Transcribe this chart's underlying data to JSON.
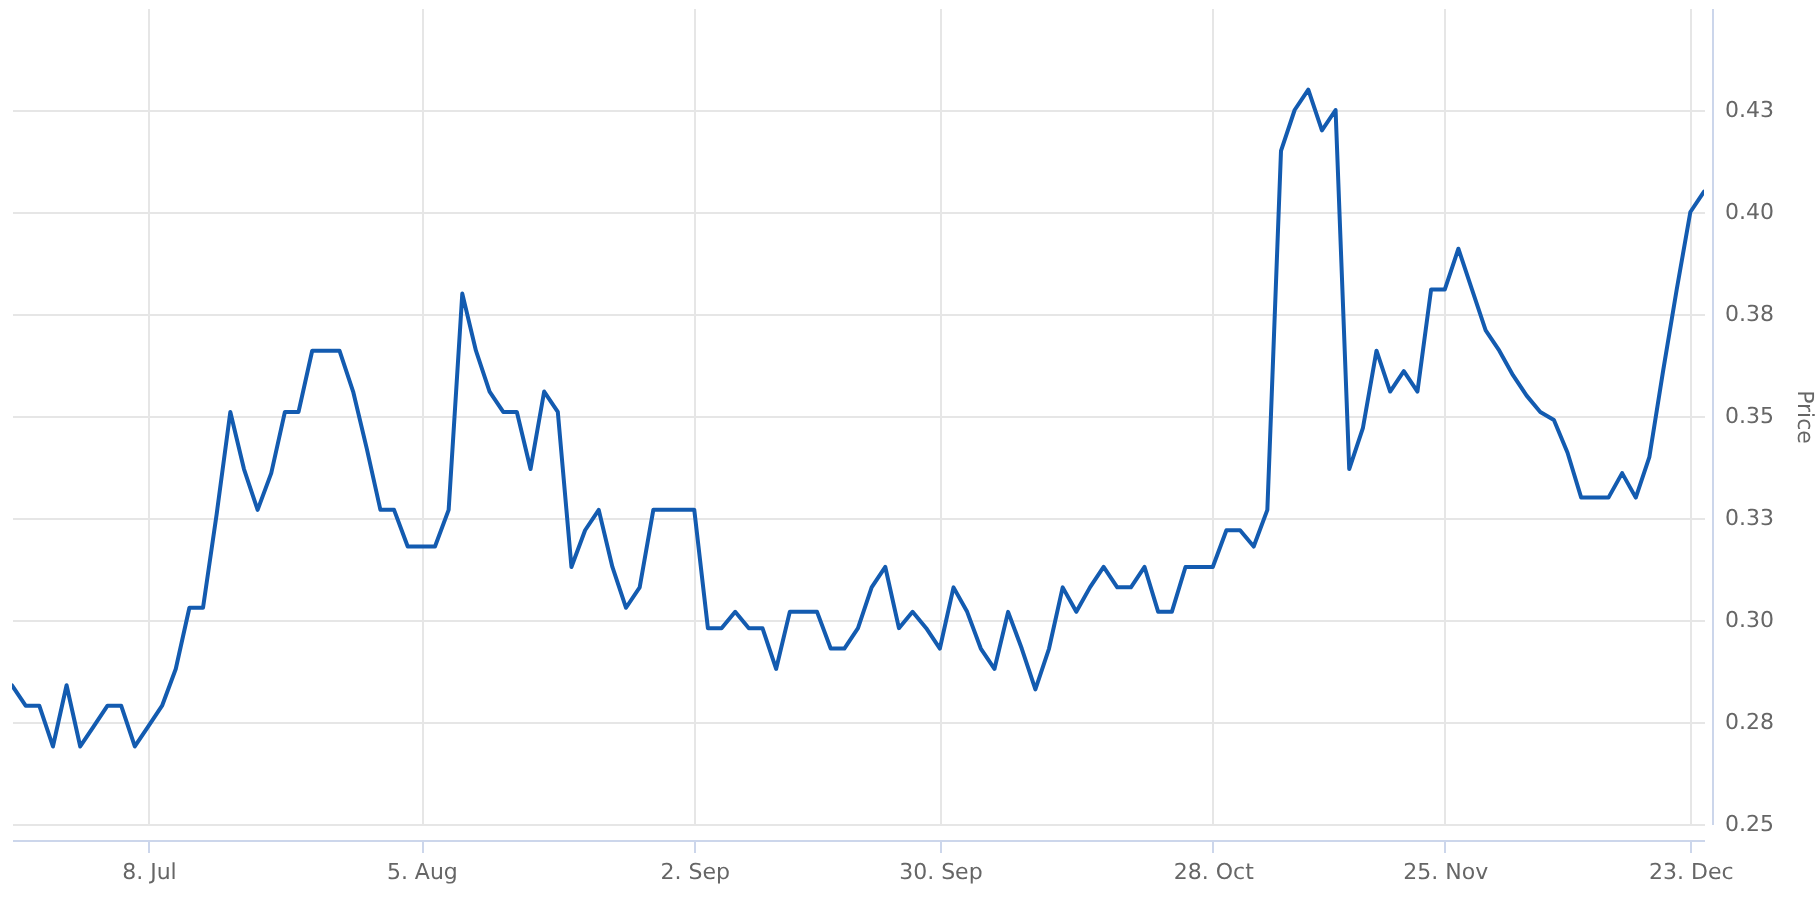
{
  "chart_data": {
    "type": "line",
    "ylabel": "Price",
    "grid": true,
    "categories": [
      null,
      null,
      null,
      null,
      null,
      null,
      null,
      null,
      null,
      null,
      "8. Jul",
      null,
      null,
      null,
      null,
      null,
      null,
      null,
      null,
      null,
      null,
      null,
      null,
      null,
      null,
      null,
      null,
      null,
      null,
      null,
      "5. Aug",
      null,
      null,
      null,
      null,
      null,
      null,
      null,
      null,
      null,
      null,
      null,
      null,
      null,
      null,
      null,
      null,
      null,
      null,
      null,
      "2. Sep",
      null,
      null,
      null,
      null,
      null,
      null,
      null,
      null,
      null,
      null,
      null,
      null,
      null,
      null,
      null,
      null,
      null,
      "30. Sep",
      null,
      null,
      null,
      null,
      null,
      null,
      null,
      null,
      null,
      null,
      null,
      null,
      null,
      null,
      null,
      null,
      null,
      null,
      null,
      "28. Oct",
      null,
      null,
      null,
      null,
      null,
      null,
      null,
      null,
      null,
      null,
      null,
      null,
      null,
      null,
      null,
      null,
      "25. Nov",
      null,
      null,
      null,
      null,
      null,
      null,
      null,
      null,
      null,
      null,
      null,
      null,
      null,
      null,
      null,
      null,
      null,
      "23. Dec",
      null
    ],
    "series": [
      {
        "color": "#135bb0",
        "values": [
          0.284,
          0.279,
          0.279,
          0.269,
          0.284,
          0.269,
          0.274,
          0.279,
          0.279,
          0.269,
          0.274,
          0.279,
          0.288,
          0.303,
          0.303,
          0.326,
          0.351,
          0.337,
          0.327,
          0.336,
          0.351,
          0.351,
          0.366,
          0.366,
          0.366,
          0.356,
          0.342,
          0.327,
          0.327,
          0.318,
          0.318,
          0.318,
          0.327,
          0.38,
          0.366,
          0.356,
          0.351,
          0.351,
          0.337,
          0.356,
          0.351,
          0.313,
          0.322,
          0.327,
          0.313,
          0.303,
          0.308,
          0.327,
          0.327,
          0.327,
          0.327,
          0.298,
          0.298,
          0.302,
          0.298,
          0.298,
          0.288,
          0.302,
          0.302,
          0.302,
          0.293,
          0.293,
          0.298,
          0.308,
          0.313,
          0.298,
          0.302,
          0.298,
          0.293,
          0.308,
          0.302,
          0.293,
          0.288,
          0.302,
          0.293,
          0.283,
          0.293,
          0.308,
          0.302,
          0.308,
          0.313,
          0.308,
          0.308,
          0.313,
          0.302,
          0.302,
          0.313,
          0.313,
          0.313,
          0.322,
          0.322,
          0.318,
          0.327,
          0.415,
          0.425,
          0.43,
          0.42,
          0.425,
          0.337,
          0.347,
          0.366,
          0.356,
          0.361,
          0.356,
          0.381,
          0.381,
          0.391,
          0.381,
          0.371,
          0.366,
          0.36,
          0.355,
          0.351,
          0.349,
          0.341,
          0.33,
          0.33,
          0.33,
          0.336,
          0.33,
          0.34,
          0.361,
          0.381,
          0.4,
          0.405
        ]
      }
    ],
    "ylim": [
      0.25,
      0.45
    ],
    "yticks": [
      0.25,
      {
        "value": 0.275,
        "label": "0.28"
      },
      {
        "value": 0.3,
        "label": "0.30"
      },
      {
        "value": 0.325,
        "label": "0.33"
      },
      0.35,
      {
        "value": 0.375,
        "label": "0.38"
      },
      {
        "value": 0.4,
        "label": "0.40"
      },
      {
        "value": 0.425,
        "label": "0.43"
      }
    ]
  }
}
